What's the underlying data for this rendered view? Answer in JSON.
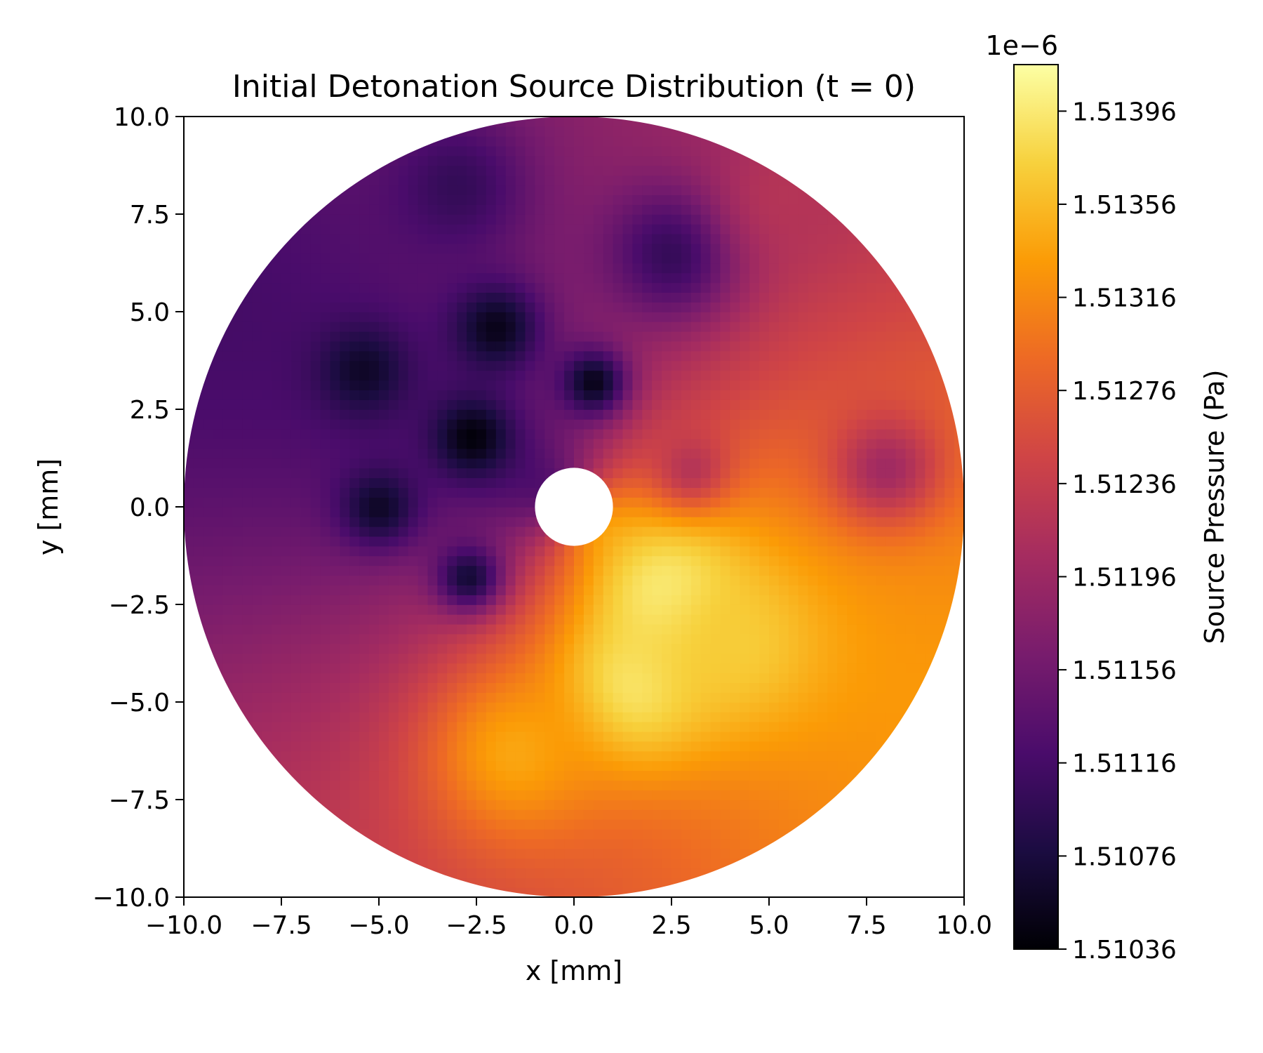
{
  "chart_data": {
    "type": "heatmap",
    "title": "Initial Detonation Source Distribution (t = 0)",
    "xlabel": "x [mm]",
    "ylabel": "y [mm]",
    "xlim": [
      -10,
      10
    ],
    "ylim": [
      -10,
      10
    ],
    "x_ticks": [
      -10,
      -7.5,
      -5,
      -2.5,
      0,
      2.5,
      5,
      7.5,
      10
    ],
    "x_tick_labels": [
      "−10.0",
      "−7.5",
      "−5.0",
      "−2.5",
      "0.0",
      "2.5",
      "5.0",
      "7.5",
      "10.0"
    ],
    "y_ticks": [
      10,
      7.5,
      5,
      2.5,
      0,
      -2.5,
      -5,
      -7.5,
      -10
    ],
    "y_tick_labels": [
      "10.0",
      "7.5",
      "5.0",
      "2.5",
      "0.0",
      "−2.5",
      "−5.0",
      "−7.5",
      "−10.0"
    ],
    "domain": {
      "outer_radius_mm": 10,
      "inner_radius_mm": 1
    },
    "colormap": "inferno",
    "colormap_stops": [
      "#000004",
      "#1b0c41",
      "#4a0c6b",
      "#781c6d",
      "#a52c60",
      "#cf4446",
      "#ed6925",
      "#fb9b06",
      "#f7d13d",
      "#fcffa4"
    ],
    "colorbar": {
      "label": "Source Pressure (Pa)",
      "offset_text": "1e−6",
      "range": [
        1.51036,
        1.51416
      ],
      "ticks": [
        1.51396,
        1.51356,
        1.51316,
        1.51276,
        1.51236,
        1.51196,
        1.51156,
        1.51116,
        1.51076,
        1.51036
      ],
      "tick_labels": [
        "1.51396",
        "1.51356",
        "1.51316",
        "1.51276",
        "1.51236",
        "1.51196",
        "1.51156",
        "1.51116",
        "1.51076",
        "1.51036"
      ]
    },
    "field_features": [
      {
        "x": 2.5,
        "y": -2.3,
        "value": 1.5141,
        "sigma": 1.3
      },
      {
        "x": 1.5,
        "y": -4.6,
        "value": 1.514,
        "sigma": 1.5
      },
      {
        "x": 4.2,
        "y": -3.5,
        "value": 1.5137,
        "sigma": 1.6
      },
      {
        "x": -1.5,
        "y": -6.3,
        "value": 1.5134,
        "sigma": 1.6
      },
      {
        "x": -2.6,
        "y": 1.8,
        "value": 1.5104,
        "sigma": 0.7
      },
      {
        "x": -2.0,
        "y": 4.6,
        "value": 1.5105,
        "sigma": 0.8
      },
      {
        "x": 0.5,
        "y": 3.2,
        "value": 1.5105,
        "sigma": 0.6
      },
      {
        "x": -5.4,
        "y": 3.5,
        "value": 1.5106,
        "sigma": 0.8
      },
      {
        "x": -5.0,
        "y": 0.0,
        "value": 1.5106,
        "sigma": 0.7
      },
      {
        "x": -2.7,
        "y": -1.8,
        "value": 1.5107,
        "sigma": 0.6
      },
      {
        "x": 2.5,
        "y": 6.5,
        "value": 1.511,
        "sigma": 1.2
      },
      {
        "x": -3.0,
        "y": 8.2,
        "value": 1.511,
        "sigma": 1.2
      },
      {
        "x": 3.0,
        "y": 1.0,
        "value": 1.5122,
        "sigma": 0.7
      },
      {
        "x": 8.0,
        "y": 1.0,
        "value": 1.512,
        "sigma": 1.0
      },
      {
        "x": 5.5,
        "y": 8.0,
        "value": 1.5122,
        "sigma": 1.2
      }
    ]
  }
}
